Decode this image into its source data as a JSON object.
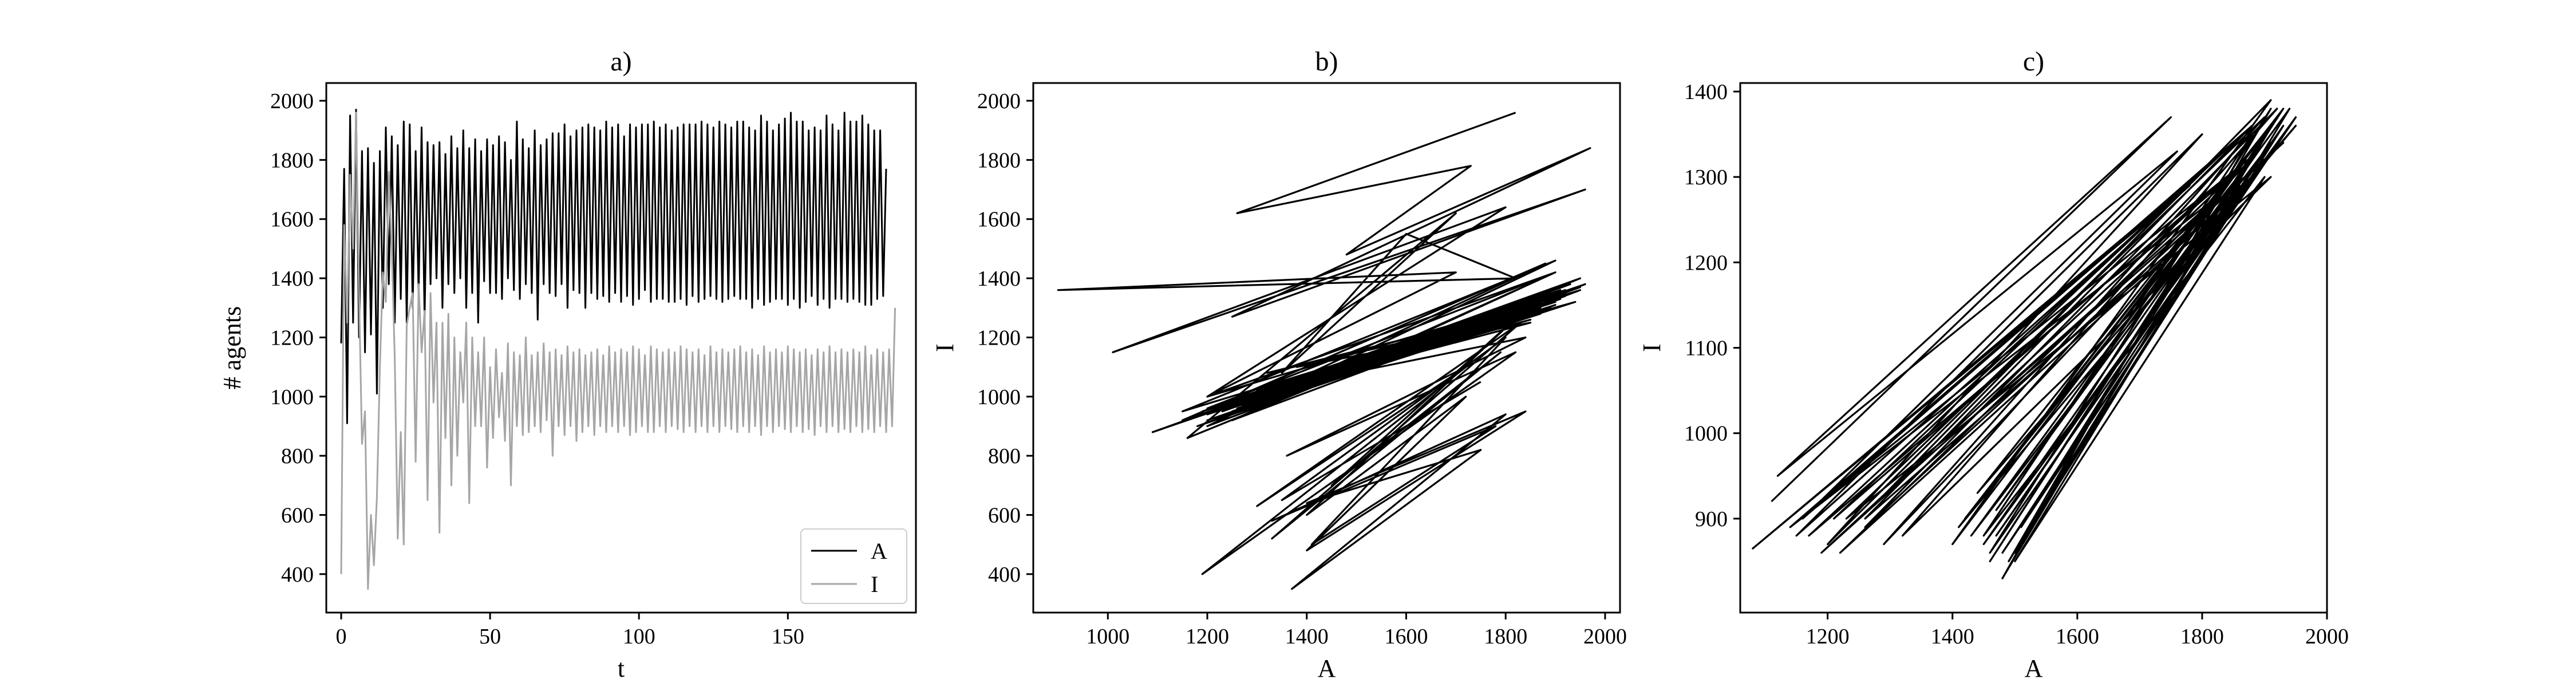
{
  "chart_data": [
    {
      "type": "line",
      "title": "a)",
      "xlabel": "t",
      "ylabel": "# agents",
      "xlim": [
        -5,
        193
      ],
      "ylim": [
        270,
        2060
      ],
      "xticks": [
        0,
        50,
        100,
        150
      ],
      "yticks": [
        400,
        600,
        800,
        1000,
        1200,
        1400,
        1600,
        1800,
        2000
      ],
      "legend": "bottom-right",
      "grid": false,
      "series": [
        {
          "name": "A",
          "color": "#000000",
          "start": 0,
          "values": [
            1180,
            1770,
            910,
            1950,
            1250,
            1970,
            1200,
            1830,
            1150,
            1840,
            1210,
            1790,
            1010,
            1830,
            1300,
            1910,
            1380,
            1880,
            1250,
            1850,
            1330,
            1930,
            1250,
            1920,
            1300,
            1830,
            1350,
            1910,
            1260,
            1860,
            1380,
            1850,
            1400,
            1860,
            1300,
            1820,
            1380,
            1880,
            1350,
            1840,
            1400,
            1900,
            1300,
            1840,
            1350,
            1870,
            1250,
            1830,
            1390,
            1870,
            1350,
            1850,
            1350,
            1880,
            1330,
            1860,
            1400,
            1800,
            1360,
            1930,
            1330,
            1870,
            1380,
            1840,
            1350,
            1900,
            1260,
            1850,
            1380,
            1870,
            1350,
            1890,
            1340,
            1890,
            1380,
            1920,
            1300,
            1880,
            1360,
            1900,
            1350,
            1910,
            1300,
            1920,
            1350,
            1910,
            1330,
            1900,
            1340,
            1930,
            1320,
            1910,
            1350,
            1920,
            1320,
            1880,
            1340,
            1920,
            1310,
            1910,
            1330,
            1920,
            1360,
            1920,
            1320,
            1930,
            1330,
            1910,
            1330,
            1920,
            1320,
            1900,
            1320,
            1910,
            1330,
            1920,
            1310,
            1920,
            1340,
            1920,
            1320,
            1930,
            1330,
            1920,
            1340,
            1910,
            1330,
            1930,
            1320,
            1920,
            1330,
            1910,
            1340,
            1930,
            1330,
            1930,
            1330,
            1910,
            1300,
            1900,
            1330,
            1950,
            1310,
            1930,
            1320,
            1900,
            1330,
            1920,
            1330,
            1940,
            1310,
            1960,
            1330,
            1930,
            1300,
            1930,
            1320,
            1900,
            1340,
            1910,
            1310,
            1900,
            1330,
            1950,
            1300,
            1920,
            1330,
            1900,
            1330,
            1960,
            1320,
            1930,
            1330,
            1930,
            1320,
            1950,
            1310,
            1920,
            1310,
            1900,
            1330,
            1900,
            1340,
            1770
          ]
        },
        {
          "name": "I",
          "color": "#a6a6a6",
          "start": 0,
          "values": [
            400,
            1580,
            1250,
            1750,
            1500,
            1960,
            1350,
            840,
            950,
            350,
            600,
            430,
            660,
            1100,
            1420,
            1320,
            1760,
            1500,
            1130,
            520,
            880,
            500,
            1240,
            1300,
            1350,
            780,
            1380,
            1150,
            1290,
            650,
            1350,
            980,
            1250,
            540,
            1250,
            860,
            1280,
            700,
            1200,
            800,
            1150,
            980,
            1250,
            640,
            1200,
            900,
            1150,
            900,
            1200,
            760,
            1100,
            860,
            1160,
            930,
            1080,
            850,
            1180,
            700,
            1150,
            900,
            1140,
            870,
            1200,
            880,
            1140,
            900,
            1150,
            880,
            1180,
            920,
            1150,
            800,
            1160,
            900,
            1140,
            870,
            1170,
            900,
            1150,
            850,
            1160,
            880,
            1140,
            900,
            1150,
            870,
            1160,
            900,
            1140,
            880,
            1170,
            900,
            1150,
            880,
            1160,
            900,
            1150,
            870,
            1170,
            880,
            1160,
            900,
            1140,
            880,
            1170,
            880,
            1160,
            900,
            1150,
            880,
            1160,
            900,
            1150,
            890,
            1170,
            880,
            1160,
            900,
            1150,
            880,
            1160,
            900,
            1140,
            880,
            1170,
            900,
            1150,
            880,
            1160,
            900,
            1150,
            890,
            1160,
            880,
            1170,
            900,
            1150,
            880,
            1160,
            900,
            1140,
            870,
            1170,
            900,
            1150,
            880,
            1160,
            900,
            1150,
            890,
            1170,
            880,
            1160,
            900,
            1150,
            880,
            1160,
            890,
            1140,
            870,
            1160,
            900,
            1150,
            880,
            1170,
            900,
            1150,
            880,
            1160,
            890,
            1150,
            880,
            1160,
            900,
            1150,
            880,
            1170,
            890,
            1140,
            880,
            1160,
            900,
            1150,
            880,
            1160,
            900,
            1300
          ]
        }
      ]
    },
    {
      "type": "line",
      "title": "b)",
      "xlabel": "A",
      "ylabel": "I",
      "xlim": [
        850,
        2030
      ],
      "ylim": [
        270,
        2060
      ],
      "xticks": [
        1000,
        1200,
        1400,
        1600,
        1800,
        2000
      ],
      "yticks": [
        400,
        600,
        800,
        1000,
        1200,
        1400,
        1600,
        1800,
        2000
      ],
      "grid": false,
      "series": [
        {
          "color": "#000000",
          "x": [
            1820,
            1260,
            1730,
            1480,
            1970,
            1250,
            1960,
            1010,
            1800,
            1200,
            1700,
            900,
            1820,
            1600,
            1350,
            1700,
            1160,
            1950,
            1090,
            1960,
            1200,
            1900,
            1150,
            1950,
            1250,
            1900,
            1200,
            1930,
            1280,
            1880,
            1150,
            1950,
            1200,
            1900,
            1320,
            1870,
            1190,
            1910,
            1350,
            1880,
            1260,
            1950,
            1180,
            1900,
            1320,
            1840,
            1200,
            1920,
            1300,
            1900,
            1230,
            1930,
            1330,
            1880,
            1270,
            1910,
            1200,
            1940,
            1300,
            1860,
            1250,
            1920,
            1350,
            1890,
            1230,
            1900,
            1320,
            1900,
            1280,
            1920,
            1350,
            1870,
            1260,
            1930,
            1300,
            1850,
            1280,
            1910,
            1380,
            1850,
            1400,
            1840,
            1360,
            1820,
            1190,
            1720,
            1300,
            1830,
            1330,
            1790,
            1450,
            1830,
            1400,
            1720,
            1400,
            1840,
            1400,
            1750,
            1370,
            1800,
            1330,
            1780,
            1410,
            1800,
            1350,
            1750
          ],
          "y": [
            1960,
            1620,
            1780,
            1480,
            1840,
            1270,
            1700,
            1150,
            1640,
            1000,
            1420,
            1360,
            1400,
            1550,
            1080,
            1620,
            860,
            1400,
            880,
            1380,
            900,
            1460,
            950,
            1360,
            920,
            1420,
            960,
            1380,
            980,
            1450,
            920,
            1370,
            1000,
            1420,
            980,
            1300,
            950,
            1360,
            1020,
            1330,
            980,
            1370,
            900,
            1310,
            1000,
            1330,
            940,
            1340,
            980,
            1350,
            950,
            1360,
            1000,
            1310,
            970,
            1330,
            920,
            1320,
            1020,
            1280,
            950,
            1360,
            1040,
            1300,
            960,
            1320,
            1080,
            1300,
            980,
            1350,
            1050,
            1280,
            960,
            1360,
            1020,
            1260,
            990,
            1330,
            1100,
            1250,
            1050,
            1200,
            800,
            1150,
            400,
            1100,
            630,
            1250,
            520,
            1150,
            700,
            1280,
            600,
            1000,
            480,
            950,
            640,
            820,
            350,
            940,
            580,
            900,
            500,
            1200,
            650,
            1050
          ]
        }
      ]
    },
    {
      "type": "line",
      "title": "c)",
      "xlabel": "A",
      "ylabel": "I",
      "xlim": [
        1060,
        2000
      ],
      "ylim": [
        790,
        1410
      ],
      "xticks": [
        1200,
        1400,
        1600,
        1800,
        2000
      ],
      "yticks": [
        900,
        1000,
        1100,
        1200,
        1300,
        1400
      ],
      "grid": false,
      "series": [
        {
          "color": "#000000",
          "x": [
            1110,
            1750,
            1120,
            1760,
            1160,
            1790,
            1080,
            1780,
            1150,
            1800,
            1200,
            1820,
            1140,
            1830,
            1190,
            1840,
            1210,
            1850,
            1170,
            1860,
            1220,
            1870,
            1260,
            1880,
            1190,
            1890,
            1290,
            1900,
            1230,
            1910,
            1320,
            1920,
            1260,
            1930,
            1280,
            1910,
            1400,
            1920,
            1440,
            1950,
            1410,
            1900,
            1460,
            1930,
            1420,
            1890,
            1450,
            1950,
            1480,
            1910,
            1430,
            1870,
            1470,
            1940,
            1500,
            1900,
            1450,
            1880,
            1480,
            1920,
            1510,
            1890,
            1460,
            1910,
            1490,
            1860,
            1470,
            1930,
            1500,
            1900
          ],
          "y": [
            920,
            1370,
            950,
            1330,
            900,
            1300,
            865,
            1290,
            880,
            1350,
            870,
            1320,
            890,
            1280,
            860,
            1300,
            900,
            1340,
            880,
            1310,
            860,
            1290,
            900,
            1360,
            920,
            1330,
            870,
            1370,
            900,
            1300,
            880,
            1380,
            890,
            1340,
            920,
            1390,
            870,
            1370,
            930,
            1360,
            890,
            1350,
            850,
            1380,
            900,
            1330,
            870,
            1370,
            860,
            1340,
            880,
            1320,
            910,
            1380,
            850,
            1300,
            880,
            1350,
            830,
            1370,
            890,
            1310,
            860,
            1380,
            850,
            1290,
            880,
            1360,
            860,
            1320
          ]
        }
      ]
    }
  ]
}
